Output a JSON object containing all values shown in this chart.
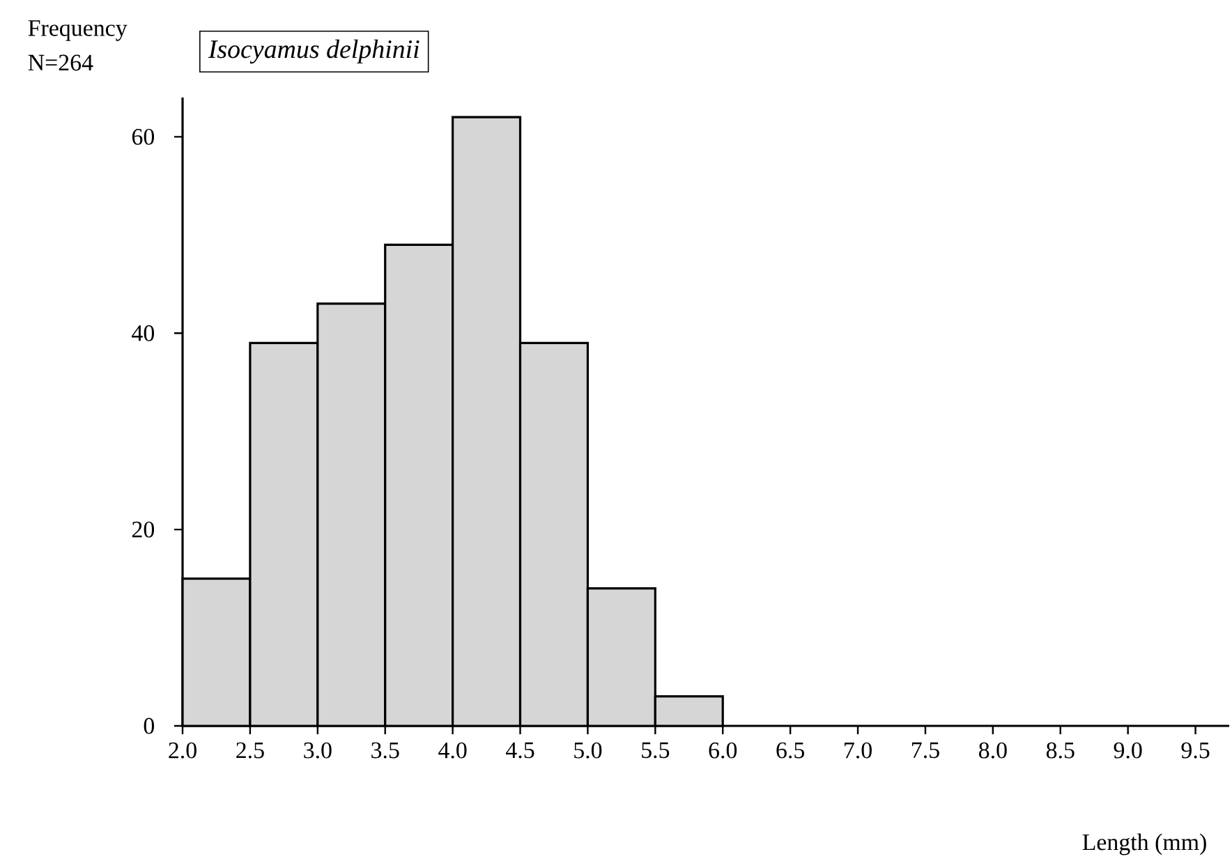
{
  "chart_data": {
    "type": "histogram",
    "title": "Isocyamus delphinii",
    "xlabel": "Length (mm)",
    "ylabel": "Frequency",
    "annotations": [
      "N=264"
    ],
    "bins": [
      2.0,
      2.5,
      3.0,
      3.5,
      4.0,
      4.5,
      5.0,
      5.5,
      6.0
    ],
    "values": [
      15,
      39,
      43,
      49,
      62,
      39,
      14,
      3
    ],
    "color": "#d6d6d6",
    "xlim": [
      2.0,
      9.75
    ],
    "ylim": [
      0,
      64
    ],
    "xticks": [
      {
        "value": 2.0,
        "label": "2.0"
      },
      {
        "value": 2.5,
        "label": "2.5"
      },
      {
        "value": 3.0,
        "label": "3.0"
      },
      {
        "value": 3.5,
        "label": "3.5"
      },
      {
        "value": 4.0,
        "label": "4.0"
      },
      {
        "value": 4.5,
        "label": "4.5"
      },
      {
        "value": 5.0,
        "label": "5.0"
      },
      {
        "value": 5.5,
        "label": "5.5"
      },
      {
        "value": 6.0,
        "label": "6.0"
      },
      {
        "value": 6.5,
        "label": "6.5"
      },
      {
        "value": 7.0,
        "label": "7.0"
      },
      {
        "value": 7.5,
        "label": "7.5"
      },
      {
        "value": 8.0,
        "label": "8.0"
      },
      {
        "value": 8.5,
        "label": "8.5"
      },
      {
        "value": 9.0,
        "label": "9.0"
      },
      {
        "value": 9.5,
        "label": "9.5"
      }
    ],
    "yticks": [
      0,
      20,
      40,
      60
    ]
  }
}
